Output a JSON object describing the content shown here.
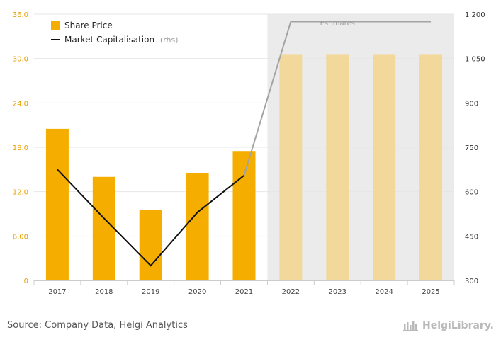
{
  "chart_data": {
    "type": "bar",
    "categories": [
      "2017",
      "2018",
      "2019",
      "2020",
      "2021",
      "2022",
      "2023",
      "2024",
      "2025"
    ],
    "series": [
      {
        "name": "Share Price",
        "type": "bar",
        "axis": "left",
        "values": [
          20.5,
          14.0,
          9.5,
          14.5,
          17.5,
          30.6,
          30.6,
          30.6,
          30.6
        ]
      },
      {
        "name": "Market Capitalisation",
        "name_suffix": "(rhs)",
        "type": "line",
        "axis": "right",
        "values": [
          675,
          510,
          350,
          530,
          655,
          1175,
          1175,
          1175,
          1175
        ]
      }
    ],
    "estimates_from": "2022",
    "estimates_label": "Estimates",
    "y_left": {
      "ylim": [
        0,
        36
      ],
      "ticks": [
        "0",
        "6.00",
        "12.0",
        "18.0",
        "24.0",
        "30.0",
        "36.0"
      ],
      "tick_values": [
        0,
        6,
        12,
        18,
        24,
        30,
        36
      ]
    },
    "y_right": {
      "ylim": [
        300,
        1200
      ],
      "ticks": [
        "300",
        "450",
        "600",
        "750",
        "900",
        "1 050",
        "1 200"
      ],
      "tick_values": [
        300,
        450,
        600,
        750,
        900,
        1050,
        1200
      ]
    },
    "legend_position": "top-left",
    "grid": true,
    "colors": {
      "bar": "#f5ae00",
      "bar_estimate": "#f2d99b",
      "line": "#111111",
      "line_estimate": "#a3a3a3",
      "estimates_band": "#ebebeb",
      "axis_text": "#e8a100",
      "right_axis_text": "#333333",
      "grid": "#e6e6e6"
    }
  },
  "footer": {
    "source": "Source: Company Data, Helgi Analytics",
    "logo_text": "HelgiLibrary."
  }
}
